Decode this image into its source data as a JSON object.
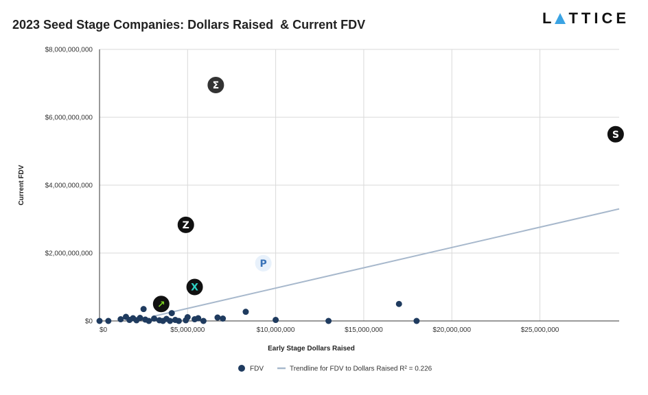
{
  "header": {
    "title": "2023 Seed Stage Companies: Dollars Raised  & Current FDV",
    "brand_left": "L",
    "brand_right": "TTICE",
    "brand_accent": "#3aa3e3"
  },
  "chart_data": {
    "type": "scatter",
    "title": "2023 Seed Stage Companies: Dollars Raised  & Current FDV",
    "xlabel": "Early Stage Dollars Raised",
    "ylabel": "Current FDV",
    "xlim": [
      0,
      29500000
    ],
    "ylim": [
      0,
      8000000000
    ],
    "x_ticks": [
      0,
      5000000,
      10000000,
      15000000,
      20000000,
      25000000
    ],
    "x_tick_labels": [
      "$0",
      "$5,000,000",
      "$10,000,000",
      "$15,000,000",
      "$20,000,000",
      "$25,000,000"
    ],
    "y_ticks": [
      0,
      2000000000,
      4000000000,
      6000000000,
      8000000000
    ],
    "y_tick_labels": [
      "$0",
      "$2,000,000,000",
      "$4,000,000,000",
      "$6,000,000,000",
      "$8,000,000,000"
    ],
    "grid": true,
    "series": [
      {
        "name": "FDV",
        "color": "#1f3b5f",
        "points": [
          [
            0,
            0
          ],
          [
            500000,
            0
          ],
          [
            1200000,
            50000000
          ],
          [
            1500000,
            120000000
          ],
          [
            1700000,
            30000000
          ],
          [
            1900000,
            80000000
          ],
          [
            2100000,
            20000000
          ],
          [
            2300000,
            90000000
          ],
          [
            2500000,
            350000000
          ],
          [
            2600000,
            40000000
          ],
          [
            2800000,
            0
          ],
          [
            3100000,
            70000000
          ],
          [
            3400000,
            20000000
          ],
          [
            3600000,
            0
          ],
          [
            3800000,
            60000000
          ],
          [
            4000000,
            0
          ],
          [
            4100000,
            230000000
          ],
          [
            4300000,
            30000000
          ],
          [
            4500000,
            0
          ],
          [
            4900000,
            20000000
          ],
          [
            5000000,
            110000000
          ],
          [
            5400000,
            50000000
          ],
          [
            5600000,
            80000000
          ],
          [
            5900000,
            0
          ],
          [
            6700000,
            100000000
          ],
          [
            7000000,
            70000000
          ],
          [
            8300000,
            270000000
          ],
          [
            10000000,
            30000000
          ],
          [
            13000000,
            0
          ],
          [
            17000000,
            500000000
          ],
          [
            18000000,
            0
          ]
        ]
      }
    ],
    "logo_points": [
      {
        "name": "sigma-logo",
        "x": 6600000,
        "y": 6950000000,
        "glyph": "Σ",
        "bg": "#333333",
        "fg": "#ffffff"
      },
      {
        "name": "s-coin-logo",
        "x": 29300000,
        "y": 5500000000,
        "glyph": "S",
        "bg": "#111111",
        "fg": "#ffffff"
      },
      {
        "name": "z-logo",
        "x": 4900000,
        "y": 2830000000,
        "glyph": "Z",
        "bg": "#111111",
        "fg": "#ffffff"
      },
      {
        "name": "penguin-logo",
        "x": 9300000,
        "y": 1700000000,
        "glyph": "P",
        "bg": "#e8f1fb",
        "fg": "#3a73b8"
      },
      {
        "name": "x-network-logo",
        "x": 5400000,
        "y": 1000000000,
        "glyph": "X",
        "bg": "#111111",
        "fg": "#2ed3c6"
      },
      {
        "name": "green-chart-logo",
        "x": 3500000,
        "y": 500000000,
        "glyph": "↗",
        "bg": "#111111",
        "fg": "#7ed321"
      }
    ],
    "trendline": {
      "name": "Trendline for FDV to Dollars Raised R² = 0.226",
      "color": "#a7b8cc",
      "x_start": 3000000,
      "y_start": 130000000,
      "x_end": 29500000,
      "y_end": 3300000000
    },
    "legend": [
      {
        "label": "FDV",
        "kind": "dot",
        "color": "#1f3b5f"
      },
      {
        "label": "Trendline for FDV to Dollars Raised R² = 0.226",
        "kind": "line",
        "color": "#a7b8cc"
      }
    ],
    "legend_position": "bottom-center"
  }
}
